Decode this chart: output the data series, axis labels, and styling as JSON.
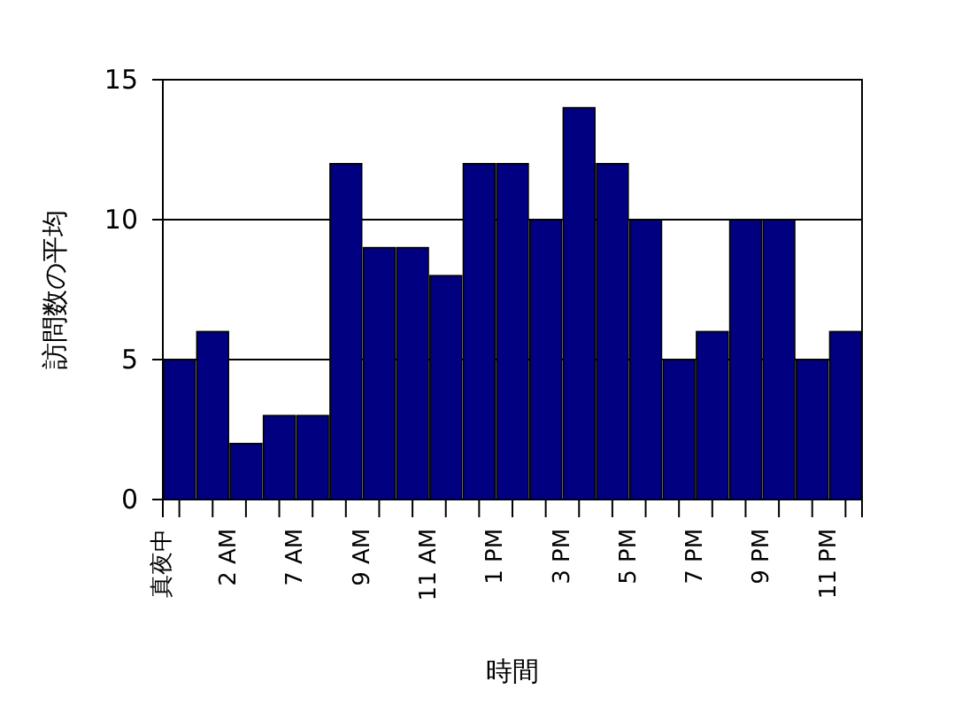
{
  "chart_data": {
    "type": "bar",
    "xlabel": "時間",
    "ylabel": "訪問数の平均",
    "categories": [
      "真夜中",
      null,
      "2 AM",
      null,
      "7 AM",
      null,
      "9 AM",
      null,
      "11 AM",
      null,
      "1 PM",
      null,
      "3 PM",
      null,
      "5 PM",
      null,
      "7 PM",
      null,
      "9 PM",
      null,
      "11 PM"
    ],
    "values": [
      5,
      6,
      2,
      3,
      3,
      12,
      9,
      9,
      8,
      12,
      12,
      10,
      14,
      12,
      10,
      5,
      6,
      10,
      10,
      5,
      6
    ],
    "color": "#000080",
    "ylim": [
      0,
      15
    ],
    "yticks": [
      0,
      5,
      10,
      15
    ],
    "grid": "y"
  }
}
